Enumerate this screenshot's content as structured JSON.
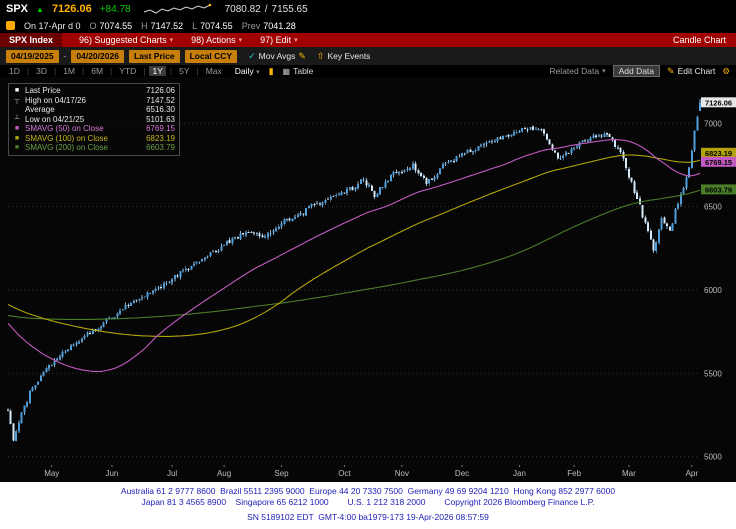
{
  "icons": {
    "tick_up": "▲",
    "caret_down": "▾",
    "pencil": "✎",
    "gear": "⚙",
    "grid": "▦",
    "candle": "▮",
    "check": "✓",
    "up_arrow": "⇧"
  },
  "quote_bar": {
    "ticker": "SPX",
    "last": "7126.06",
    "change": "+84.78",
    "range_low": "7080.82",
    "range_sep": "/",
    "range_high": "7155.65",
    "session": "On 17-Apr d 0",
    "ohlc": [
      {
        "label": "O",
        "value": "7074.55"
      },
      {
        "label": "H",
        "value": "7147.52"
      },
      {
        "label": "L",
        "value": "7074.55"
      },
      {
        "label": "Prev",
        "value": "7041.28"
      }
    ]
  },
  "menu_bar": {
    "security": "SPX Index",
    "items": [
      {
        "label": "96) Suggested Charts"
      },
      {
        "label": "98) Actions"
      },
      {
        "label": "97) Edit"
      }
    ],
    "right_label": "Candle Chart"
  },
  "toolbar": {
    "date_from": "04/19/2025",
    "date_separator": "-",
    "date_to": "04/20/2026",
    "price_field": "Last Price",
    "currency": "Local CCY",
    "mov_avgs": "Mov Avgs",
    "key_events": "Key Events"
  },
  "tabs": {
    "periods": [
      "1D",
      "3D",
      "1M",
      "6M",
      "YTD",
      "1Y",
      "5Y",
      "Max"
    ],
    "active": "1Y",
    "frequency": "Daily",
    "table_label": "Table",
    "related_data": "Related Data",
    "add_data": "Add Data",
    "edit_chart": "Edit Chart"
  },
  "legend": {
    "rows": [
      {
        "marker": "■",
        "color": "#ffffff",
        "text_color": "#e8e8e8",
        "label": "Last Price",
        "value": "7126.06"
      },
      {
        "marker": "┬",
        "color": "#bbbbbb",
        "text_color": "#e8e8e8",
        "label": "High on 04/17/26",
        "value": "7147.52"
      },
      {
        "marker": "",
        "color": "#bbbbbb",
        "text_color": "#e8e8e8",
        "label": "Average",
        "value": "6516.30"
      },
      {
        "marker": "┴",
        "color": "#bbbbbb",
        "text_color": "#e8e8e8",
        "label": "Low on 04/21/25",
        "value": "5101.63"
      },
      {
        "marker": "■",
        "color": "#c35ac3",
        "text_color": "#d679d6",
        "label": "SMAVG (50) on Close",
        "value": "6769.15"
      },
      {
        "marker": "■",
        "color": "#b3a40a",
        "text_color": "#c4b61c",
        "label": "SMAVG (100) on Close",
        "value": "6823.19"
      },
      {
        "marker": "■",
        "color": "#4a7d28",
        "text_color": "#6d9e4a",
        "label": "SMAVG (200) on Close",
        "value": "6603.79"
      }
    ]
  },
  "chart_data": {
    "type": "candlestick",
    "title": "SPX Index 1Y Daily Candle Chart",
    "days": 253,
    "price_axis": {
      "min": 4950,
      "max": 7230,
      "ticks": [
        7000,
        6500,
        6000,
        5500,
        5000
      ]
    },
    "month_starts": [
      [
        16,
        "May"
      ],
      [
        38,
        "Jun"
      ],
      [
        60,
        "Jul"
      ],
      [
        79,
        "Aug"
      ],
      [
        100,
        "Sep"
      ],
      [
        123,
        "Oct"
      ],
      [
        144,
        "Nov"
      ],
      [
        166,
        "Dec"
      ],
      [
        187,
        "Jan"
      ],
      [
        207,
        "Feb"
      ],
      [
        227,
        "Mar"
      ],
      [
        250,
        "Apr"
      ]
    ],
    "anchors": [
      [
        0,
        5280
      ],
      [
        2,
        5105
      ],
      [
        4,
        5210
      ],
      [
        8,
        5380
      ],
      [
        14,
        5520
      ],
      [
        21,
        5640
      ],
      [
        28,
        5730
      ],
      [
        35,
        5800
      ],
      [
        42,
        5880
      ],
      [
        50,
        5960
      ],
      [
        58,
        6040
      ],
      [
        66,
        6130
      ],
      [
        74,
        6220
      ],
      [
        82,
        6300
      ],
      [
        88,
        6350
      ],
      [
        93,
        6310
      ],
      [
        100,
        6400
      ],
      [
        108,
        6470
      ],
      [
        116,
        6540
      ],
      [
        124,
        6600
      ],
      [
        130,
        6660
      ],
      [
        134,
        6570
      ],
      [
        141,
        6700
      ],
      [
        148,
        6740
      ],
      [
        153,
        6630
      ],
      [
        160,
        6760
      ],
      [
        168,
        6830
      ],
      [
        176,
        6890
      ],
      [
        184,
        6930
      ],
      [
        190,
        6975
      ],
      [
        196,
        6950
      ],
      [
        201,
        6770
      ],
      [
        208,
        6870
      ],
      [
        214,
        6920
      ],
      [
        219,
        6945
      ],
      [
        224,
        6820
      ],
      [
        229,
        6600
      ],
      [
        233,
        6400
      ],
      [
        236,
        6245
      ],
      [
        239,
        6420
      ],
      [
        242,
        6360
      ],
      [
        245,
        6520
      ],
      [
        247,
        6620
      ],
      [
        249,
        6740
      ],
      [
        251,
        6950
      ],
      [
        252,
        7041
      ],
      [
        253,
        7126
      ]
    ],
    "prehistory_anchors": [
      [
        -200,
        5600
      ],
      [
        -150,
        5780
      ],
      [
        -100,
        5950
      ],
      [
        -60,
        6080
      ],
      [
        -35,
        6020
      ],
      [
        -20,
        5850
      ],
      [
        -10,
        5550
      ],
      [
        -4,
        5320
      ],
      [
        -1,
        5290
      ]
    ],
    "stats": {
      "last": 7126.06,
      "change": 84.78,
      "open": 7074.55,
      "high": 7147.52,
      "high_date": "04/17/26",
      "low_session": 7074.55,
      "prev_close": 7041.28,
      "average": 6516.3,
      "low": 5101.63,
      "low_date": "04/21/25",
      "sma50": 6769.15,
      "sma100": 6823.19,
      "sma200": 6603.79
    },
    "moving_averages": [
      {
        "window": 50,
        "color": "#c35ac3"
      },
      {
        "window": 100,
        "color": "#b3a40a"
      },
      {
        "window": 200,
        "color": "#4a7d28"
      }
    ],
    "right_badges": [
      {
        "price": 7126.06,
        "label": "7126.06",
        "bg": "#e6e6e6",
        "fg": "#000000"
      },
      {
        "price": 6823.19,
        "label": "6823.19",
        "bg": "#b3a40a",
        "fg": "#000000"
      },
      {
        "price": 6769.15,
        "label": "6769.15",
        "bg": "#c35ac3",
        "fg": "#000000"
      },
      {
        "price": 6603.79,
        "label": "6603.79",
        "bg": "#4a7d28",
        "fg": "#000000"
      }
    ],
    "colors": {
      "candle_up": "#4f9fdd",
      "candle_down": "#d6ebfa",
      "wick": "#8fb8d8",
      "grid": "#333333",
      "axis_text": "#bdbdbd",
      "background": "#060606"
    }
  },
  "footer": {
    "line1": "Australia 61 2 9777 8600  Brazil 5511 2395 9000  Europe 44 20 7330 7500  Germany 49 69 9204 1210  Hong Kong 852 2977 6000",
    "line2": "Japan 81 3 4565 8900    Singapore 65 6212 1000        U.S. 1 212 318 2000        Copyright 2026 Bloomberg Finance L.P.",
    "line3": "SN 5189102 EDT  GMT-4:00 ba1979-173 19-Apr-2026 08:57:59"
  }
}
